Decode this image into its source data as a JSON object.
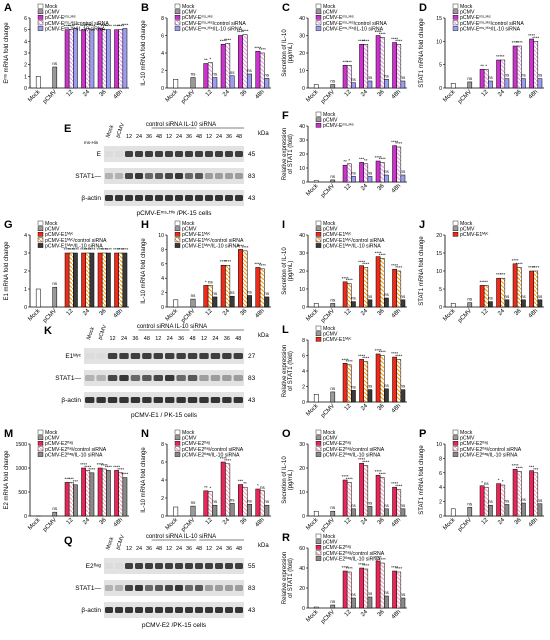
{
  "colors": {
    "mock": "#ffffff",
    "pcmv": "#9a9a9a",
    "e_main": "#cc33cc",
    "e_ctrl": "#e9a3e9",
    "e_sirna": "#9c9cf0",
    "e1_main": "#ee2a1a",
    "e1_ctrl": "#f4a21e",
    "e1_sirna": "#3a3a3a",
    "e2_main": "#e8265a",
    "e2_ctrl": "#f5a7b8",
    "e2_sirna": "#8a8a8a"
  },
  "xcats": [
    "Mock",
    "pCMV",
    "12",
    "24",
    "36",
    "48h"
  ],
  "panel_letters": [
    "A",
    "B",
    "C",
    "D",
    "E",
    "F",
    "G",
    "H",
    "I",
    "J",
    "K",
    "L",
    "M",
    "N",
    "O",
    "P",
    "Q",
    "R"
  ],
  "legends": {
    "e3": [
      "Mock",
      "pCMV",
      "pCMV-Eᵐˢ-ᴴⁱˢ",
      "pCMV-Eᵐˢ-ᴴⁱˢ/control siRNA",
      "pCMV-Eᵐˢ-ᴴⁱˢ/IL-10 siRNA"
    ],
    "e2": [
      "Mock",
      "pCMV",
      "pCMV-Eᵐˢ-ᴴⁱˢ"
    ],
    "e1": [
      "Mock",
      "pCMV",
      "pCMV-E1ᴹʸᶜ",
      "pCMV-E1ᴹʸᶜ/control siRNA",
      "pCMV-E1ᴹʸᶜ/IL-10 siRNA"
    ],
    "e1b": [
      "Mock",
      "pCMV",
      "pCMV-E1ᴹʸᶜ"
    ],
    "e2f": [
      "Mock",
      "pCMV",
      "pCMV-E2ᶠˡᵃᵍ",
      "pCMV-E2ᶠˡᵃᵍ/control siRNA",
      "pCMV-E2ᶠˡᵃᵍ/IL-10 siRNA"
    ]
  },
  "blots": {
    "E": {
      "letter": "E",
      "header": "control siRNA  IL-10 siRNA",
      "lanes": [
        "Mock",
        "pCMV",
        "12",
        "24",
        "36",
        "48",
        "12",
        "24",
        "36",
        "48",
        "12",
        "24",
        "36",
        "48"
      ],
      "kda": "kDa",
      "rows": [
        "E",
        "STAT1—",
        "β-actin"
      ],
      "kd": [
        "45",
        "83",
        "43"
      ],
      "tag": "ms-His",
      "footer": "pCMV-Eᵐˢ-ᴴⁱˢ /PK-15 cells"
    },
    "K": {
      "letter": "K",
      "header": "control siRNA  IL-10 siRNA",
      "lanes": [
        "Mock",
        "pCMV",
        "12",
        "24",
        "36",
        "48",
        "12",
        "24",
        "36",
        "48",
        "12",
        "24",
        "36",
        "48"
      ],
      "kda": "kDa",
      "rows": [
        "E1ᴹʸᶜ",
        "STAT1—",
        "β-actin"
      ],
      "kd": [
        "27",
        "83",
        "43"
      ],
      "footer": "pCMV-E1      / PK-15 cells"
    },
    "Q": {
      "letter": "Q",
      "header": "control siRNA  IL-10 siRNA",
      "lanes": [
        "Mock",
        "pCMV",
        "12",
        "24",
        "36",
        "48",
        "12",
        "24",
        "36",
        "48",
        "12",
        "24",
        "36",
        "48"
      ],
      "kda": "kDa",
      "rows": [
        "E2ᶠˡᵃᵍ",
        "STAT1—",
        "β-actin"
      ],
      "kd": [
        "55",
        "83",
        "43"
      ],
      "footer": "pCMV-E2   /PK-15 cells"
    }
  },
  "chart_data": [
    {
      "panel": "A",
      "type": "bar",
      "ylabel": "Eᵐˢ mRNA fold change",
      "yticks": [
        "0",
        "1",
        "2",
        "3",
        "4",
        "5",
        "6"
      ],
      "ylim": [
        0,
        6
      ],
      "group": "e3",
      "legend": "e3",
      "mode": "mrna",
      "ctrl": [
        1,
        1.8
      ],
      "values": [
        [
          5.0,
          5.0,
          5.1
        ],
        [
          5.0,
          5.1,
          5.0
        ],
        [
          5.1,
          5.0,
          5.0
        ],
        [
          5.0,
          5.0,
          5.1
        ]
      ],
      "stars": [
        [
          "****",
          "****",
          "****"
        ],
        [
          "****",
          "****",
          "****"
        ],
        [
          "****",
          "****",
          "****"
        ],
        [
          "****",
          "****",
          "****"
        ]
      ]
    },
    {
      "panel": "B",
      "type": "bar",
      "ylabel": "IL-10 mRNA fold change",
      "yticks": [
        "0",
        "2",
        "4",
        "6",
        "8"
      ],
      "ylim": [
        0,
        8
      ],
      "group": "e3",
      "legend": "e3",
      "mode": "mrna",
      "ctrl": [
        1,
        1.2
      ],
      "values": [
        [
          2.8,
          2.9,
          1.2
        ],
        [
          5.0,
          5.1,
          1.4
        ],
        [
          6.0,
          6.1,
          1.6
        ],
        [
          4.2,
          4.0,
          1.1
        ]
      ],
      "stars": [
        [
          "**",
          "*",
          "ns"
        ],
        [
          "****",
          "****",
          "ns"
        ],
        [
          "****",
          "****",
          "ns"
        ],
        [
          "****",
          "****",
          "ns"
        ]
      ]
    },
    {
      "panel": "C",
      "type": "bar",
      "ylabel": "Secretion of IL-10\n(pg/mL)",
      "yticks": [
        "0",
        "10",
        "20",
        "30",
        "40"
      ],
      "ylim": [
        0,
        40
      ],
      "group": "e3",
      "legend": "e3",
      "mode": "mrna",
      "ctrl": [
        2,
        2
      ],
      "values": [
        [
          13,
          13,
          3
        ],
        [
          25,
          25,
          4
        ],
        [
          30,
          29,
          5
        ],
        [
          26,
          25,
          4
        ]
      ],
      "stars": [
        [
          "***",
          "***",
          "ns"
        ],
        [
          "****",
          "****",
          "ns"
        ],
        [
          "****",
          "****",
          "ns"
        ],
        [
          "****",
          "****",
          "ns"
        ]
      ]
    },
    {
      "panel": "D",
      "type": "bar",
      "ylabel": "STAT1 mRNA fold change",
      "yticks": [
        "0",
        "5",
        "10",
        "15"
      ],
      "ylim": [
        0,
        15
      ],
      "group": "e3",
      "legend": "e3",
      "mode": "mrna",
      "ctrl": [
        1,
        1.3
      ],
      "values": [
        [
          4,
          4,
          1.5
        ],
        [
          6,
          6,
          2
        ],
        [
          9,
          9,
          2
        ],
        [
          10.5,
          10,
          2
        ]
      ],
      "stars": [
        [
          "**",
          "*",
          "ns"
        ],
        [
          "***",
          "**",
          "ns"
        ],
        [
          "****",
          "****",
          "ns"
        ],
        [
          "****",
          "****",
          "ns"
        ]
      ]
    },
    {
      "panel": "F",
      "type": "bar",
      "ylabel": "Relative expression\nof STAT1 (fold)",
      "yticks": [
        "0",
        "10",
        "20",
        "30",
        "40"
      ],
      "ylim": [
        0,
        40
      ],
      "group": "e3",
      "legend": "e2",
      "mode": "wb",
      "ctrl": [
        1,
        1.5
      ],
      "values": [
        [
          12,
          13,
          4
        ],
        [
          14,
          13,
          4
        ],
        [
          15,
          14,
          5
        ],
        [
          26,
          25,
          5
        ]
      ],
      "stars": [
        [
          "**",
          "*",
          "ns"
        ],
        [
          "***",
          "**",
          "ns"
        ],
        [
          "****",
          "****",
          "ns"
        ],
        [
          "****",
          "****",
          "ns"
        ]
      ]
    },
    {
      "panel": "G",
      "type": "bar",
      "ylabel": "E1 mRNA fold change",
      "yticks": [
        "0",
        "1",
        "2",
        "3",
        "4"
      ],
      "ylim": [
        0,
        4
      ],
      "group": "e1",
      "legend": "e1",
      "mode": "mrna",
      "ctrl": [
        1,
        1.1
      ],
      "values": [
        [
          3.0,
          3.0,
          3.0
        ],
        [
          3.0,
          3.0,
          3.0
        ],
        [
          3.0,
          3.0,
          3.0
        ],
        [
          3.0,
          3.0,
          3.0
        ]
      ],
      "stars": [
        [
          "****",
          "****",
          "****"
        ],
        [
          "****",
          "****",
          "****"
        ],
        [
          "****",
          "****",
          "****"
        ],
        [
          "****",
          "****",
          "****"
        ]
      ]
    },
    {
      "panel": "H",
      "type": "bar",
      "ylabel": "IL-10 mRNA fold change",
      "yticks": [
        "0",
        "2",
        "4",
        "6",
        "8",
        "10"
      ],
      "ylim": [
        0,
        10
      ],
      "group": "e1",
      "legend": "e1",
      "mode": "mrna",
      "ctrl": [
        1,
        1.1
      ],
      "values": [
        [
          3,
          3,
          1.4
        ],
        [
          5.8,
          5.8,
          1.5
        ],
        [
          8,
          7.8,
          1.6
        ],
        [
          5.5,
          5.3,
          1.4
        ]
      ],
      "stars": [
        [
          "*",
          "ns",
          "ns"
        ],
        [
          "****",
          "****",
          "ns"
        ],
        [
          "****",
          "****",
          "ns"
        ],
        [
          "****",
          "****",
          "ns"
        ]
      ]
    },
    {
      "panel": "I",
      "type": "bar",
      "ylabel": "Secretion of IL-10\n(pg/mL)",
      "yticks": [
        "0",
        "10",
        "20",
        "30",
        "40"
      ],
      "ylim": [
        0,
        40
      ],
      "group": "e1",
      "legend": "e1",
      "mode": "mrna",
      "ctrl": [
        2,
        2
      ],
      "values": [
        [
          14,
          13,
          3
        ],
        [
          23,
          22,
          4
        ],
        [
          28,
          27,
          5
        ],
        [
          21,
          20,
          4
        ]
      ],
      "stars": [
        [
          "****",
          "****",
          "ns"
        ],
        [
          "****",
          "****",
          "ns"
        ],
        [
          "****",
          "****",
          "ns"
        ],
        [
          "****",
          "****",
          "ns"
        ]
      ]
    },
    {
      "panel": "J",
      "type": "bar",
      "ylabel": "STAT1 mRNA fold change",
      "yticks": [
        "0",
        "5",
        "10",
        "15",
        "20"
      ],
      "ylim": [
        0,
        20
      ],
      "group": "e1",
      "legend": "e1b",
      "mode": "mrna",
      "ctrl": [
        1,
        1.2
      ],
      "values": [
        [
          6,
          6,
          1.5
        ],
        [
          8,
          8,
          2
        ],
        [
          12,
          11,
          2
        ],
        [
          10,
          10,
          2
        ]
      ],
      "stars": [
        [
          "***",
          "**",
          "ns"
        ],
        [
          "***",
          "***",
          "ns"
        ],
        [
          "****",
          "****",
          "ns"
        ],
        [
          "****",
          "****",
          "ns"
        ]
      ]
    },
    {
      "panel": "L",
      "type": "bar",
      "ylabel": "Relative expression\nof STAT1 (fold)",
      "yticks": [
        "0",
        "2",
        "4",
        "6",
        "8"
      ],
      "ylim": [
        0,
        8
      ],
      "group": "e1",
      "legend": "e1b",
      "mode": "wb",
      "ctrl": [
        1,
        1.3
      ],
      "values": [
        [
          5,
          4.8,
          1.5
        ],
        [
          5.5,
          5.2,
          1.6
        ],
        [
          6.2,
          6,
          1.7
        ],
        [
          5.8,
          5.5,
          1.6
        ]
      ],
      "stars": [
        [
          "****",
          "****",
          "ns"
        ],
        [
          "****",
          "****",
          "ns"
        ],
        [
          "****",
          "****",
          "ns"
        ],
        [
          "****",
          "****",
          "ns"
        ]
      ]
    },
    {
      "panel": "M",
      "type": "bar",
      "ylabel": "E2 mRNA fold change",
      "yticks": [
        "0",
        "500",
        "1000",
        "1500"
      ],
      "ylim": [
        0,
        1500
      ],
      "group": "e2",
      "legend": "e2f",
      "mode": "mrna",
      "ctrl": [
        1,
        80
      ],
      "values": [
        [
          700,
          700,
          650
        ],
        [
          1000,
          950,
          900
        ],
        [
          1000,
          980,
          950
        ],
        [
          950,
          900,
          800
        ]
      ],
      "stars": [
        [
          "***",
          "***",
          "***"
        ],
        [
          "****",
          "****",
          "****"
        ],
        [
          "****",
          "****",
          "****"
        ],
        [
          "****",
          "****",
          "****"
        ]
      ]
    },
    {
      "panel": "N",
      "type": "bar",
      "ylabel": "IL-10 mRNA fold change",
      "yticks": [
        "0",
        "2",
        "4",
        "6",
        "8"
      ],
      "ylim": [
        0,
        8
      ],
      "group": "e2",
      "legend": "e2f",
      "mode": "mrna",
      "ctrl": [
        1,
        1.1
      ],
      "values": [
        [
          2.8,
          2.7,
          1.2
        ],
        [
          6.0,
          5.8,
          1.4
        ],
        [
          3.5,
          3.2,
          1.3
        ],
        [
          3.0,
          2.8,
          1.2
        ]
      ],
      "stars": [
        [
          "**",
          "*",
          "ns"
        ],
        [
          "****",
          "****",
          "ns"
        ],
        [
          "***",
          "**",
          "ns"
        ],
        [
          "*",
          "ns",
          "ns"
        ]
      ]
    },
    {
      "panel": "O",
      "type": "bar",
      "ylabel": "Secretion of IL-10\n(pg/mL)",
      "yticks": [
        "0",
        "10",
        "20",
        "30"
      ],
      "ylim": [
        0,
        30
      ],
      "group": "e2",
      "legend": "e2f",
      "mode": "mrna",
      "ctrl": [
        2,
        2
      ],
      "values": [
        [
          15,
          14,
          3
        ],
        [
          22,
          21,
          4
        ],
        [
          17,
          16,
          3
        ],
        [
          12,
          11,
          3
        ]
      ],
      "stars": [
        [
          "****",
          "****",
          "ns"
        ],
        [
          "****",
          "****",
          "ns"
        ],
        [
          "****",
          "****",
          "ns"
        ],
        [
          "****",
          "****",
          "ns"
        ]
      ]
    },
    {
      "panel": "P",
      "type": "bar",
      "ylabel": "STAT1 mRNA fold change",
      "yticks": [
        "0",
        "2",
        "4",
        "6",
        "8",
        "10"
      ],
      "ylim": [
        0,
        10
      ],
      "group": "e2",
      "legend": "e2f",
      "mode": "mrna",
      "ctrl": [
        1,
        1.2
      ],
      "values": [
        [
          4.2,
          4,
          1.5
        ],
        [
          4.5,
          4.3,
          1.6
        ],
        [
          6.5,
          6.2,
          1.8
        ],
        [
          6.3,
          6,
          1.7
        ]
      ],
      "stars": [
        [
          "*",
          "ns",
          "ns"
        ],
        [
          "*",
          "*",
          "ns"
        ],
        [
          "****",
          "****",
          "ns"
        ],
        [
          "***",
          "***",
          "ns"
        ]
      ]
    },
    {
      "panel": "R",
      "type": "bar",
      "ylabel": "Relative expression\nof STAT1 (fold)",
      "yticks": [
        "0",
        "20",
        "40",
        "60"
      ],
      "ylim": [
        0,
        60
      ],
      "group": "e2",
      "legend": "e2f",
      "mode": "wb",
      "ctrl": [
        1,
        3
      ],
      "values": [
        [
          37,
          36,
          10
        ],
        [
          40,
          39,
          11
        ],
        [
          47,
          45,
          12
        ],
        [
          37,
          36,
          10
        ]
      ],
      "stars": [
        [
          "****",
          "****",
          "ns"
        ],
        [
          "****",
          "****",
          "ns"
        ],
        [
          "****",
          "****",
          "ns"
        ],
        [
          "****",
          "****",
          "ns"
        ]
      ]
    }
  ]
}
